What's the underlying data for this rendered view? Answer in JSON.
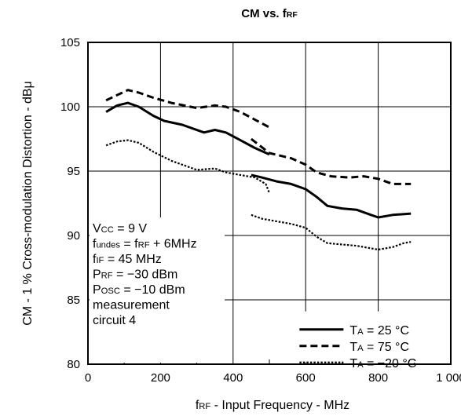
{
  "chart_data": {
    "type": "line",
    "title": "CM vs. fRF",
    "xlabel": "fRF -  Input Frequency  - MHz",
    "ylabel": "CM -  1 % Cross-modulation Distortion  - dBμ",
    "xlim": [
      0,
      1000
    ],
    "ylim": [
      80,
      105
    ],
    "xticks": [
      "0",
      "200",
      "400",
      "600",
      "800",
      "1 000"
    ],
    "yticks": [
      "80",
      "85",
      "90",
      "95",
      "100",
      "105"
    ],
    "grid": true,
    "legend_position": "bottom-right",
    "series": [
      {
        "name": "TA = 25 °C",
        "style": "solid",
        "segments": [
          [
            [
              50,
              99.6
            ],
            [
              80,
              100.1
            ],
            [
              110,
              100.3
            ],
            [
              140,
              100.0
            ],
            [
              180,
              99.3
            ],
            [
              210,
              98.9
            ],
            [
              260,
              98.6
            ],
            [
              320,
              98.0
            ],
            [
              350,
              98.2
            ],
            [
              380,
              98.0
            ],
            [
              420,
              97.4
            ],
            [
              460,
              96.8
            ],
            [
              500,
              96.3
            ]
          ],
          [
            [
              450,
              94.7
            ],
            [
              480,
              94.5
            ],
            [
              520,
              94.2
            ],
            [
              560,
              94.0
            ],
            [
              600,
              93.6
            ],
            [
              630,
              93.0
            ],
            [
              660,
              92.3
            ],
            [
              700,
              92.1
            ],
            [
              740,
              92.0
            ],
            [
              780,
              91.6
            ],
            [
              800,
              91.4
            ],
            [
              840,
              91.6
            ],
            [
              890,
              91.7
            ]
          ]
        ]
      },
      {
        "name": "TA = 75 °C",
        "style": "dashed",
        "segments": [
          [
            [
              50,
              100.5
            ],
            [
              80,
              100.9
            ],
            [
              110,
              101.3
            ],
            [
              140,
              101.1
            ],
            [
              180,
              100.7
            ],
            [
              230,
              100.3
            ],
            [
              300,
              99.9
            ],
            [
              350,
              100.1
            ],
            [
              380,
              100.0
            ],
            [
              420,
              99.6
            ],
            [
              460,
              99.0
            ],
            [
              500,
              98.4
            ]
          ],
          [
            [
              450,
              97.5
            ],
            [
              500,
              96.4
            ],
            [
              560,
              96.0
            ],
            [
              600,
              95.5
            ],
            [
              630,
              94.9
            ],
            [
              670,
              94.6
            ],
            [
              720,
              94.5
            ],
            [
              760,
              94.6
            ],
            [
              800,
              94.4
            ],
            [
              840,
              94.0
            ],
            [
              890,
              94.0
            ]
          ]
        ]
      },
      {
        "name": "TA = −20 °C",
        "style": "dotted",
        "segments": [
          [
            [
              50,
              97.0
            ],
            [
              80,
              97.3
            ],
            [
              110,
              97.4
            ],
            [
              140,
              97.2
            ],
            [
              180,
              96.5
            ],
            [
              230,
              95.8
            ],
            [
              300,
              95.1
            ],
            [
              350,
              95.2
            ],
            [
              380,
              94.9
            ],
            [
              420,
              94.7
            ],
            [
              460,
              94.5
            ],
            [
              490,
              94.0
            ],
            [
              500,
              93.3
            ]
          ],
          [
            [
              450,
              91.6
            ],
            [
              480,
              91.3
            ],
            [
              520,
              91.1
            ],
            [
              560,
              90.9
            ],
            [
              600,
              90.6
            ],
            [
              630,
              89.9
            ],
            [
              660,
              89.4
            ],
            [
              700,
              89.3
            ],
            [
              740,
              89.2
            ],
            [
              800,
              88.9
            ],
            [
              840,
              89.1
            ],
            [
              870,
              89.4
            ],
            [
              890,
              89.5
            ]
          ]
        ]
      }
    ],
    "annotations": [
      "Vₓₓ = 9 V"
    ]
  },
  "annotation_lines": [
    {
      "main": "V",
      "sub": "CC",
      "rest": " = 9 V"
    },
    {
      "main": "f",
      "sub": "undes",
      "rest": " = f",
      "sub2": "RF",
      "rest2": " + 6MHz"
    },
    {
      "main": "f",
      "sub": "IF",
      "rest": " = 45 MHz"
    },
    {
      "main": "P",
      "sub": "RF",
      "rest": " = −30 dBm"
    },
    {
      "main": "P",
      "sub": "OSC",
      "rest": " = −10 dBm"
    },
    {
      "main": "measurement"
    },
    {
      "main": "circuit 4"
    }
  ],
  "legend_items": [
    {
      "main": "T",
      "sub": "A",
      "rest": " = 25 °C",
      "style": "solid"
    },
    {
      "main": "T",
      "sub": "A",
      "rest": " = 75 °C",
      "style": "dashed"
    },
    {
      "main": "T",
      "sub": "A",
      "rest": " = −20 °C",
      "style": "dotted"
    }
  ],
  "title_parts": {
    "main": "CM vs. f",
    "sub": "RF"
  },
  "xlabel_parts": {
    "pre": "f",
    "sub": "RF",
    "rest": " -  Input Frequency  - MHz"
  },
  "ylabel_text": "CM -  1 % Cross-modulation Distortion  - dBμ"
}
